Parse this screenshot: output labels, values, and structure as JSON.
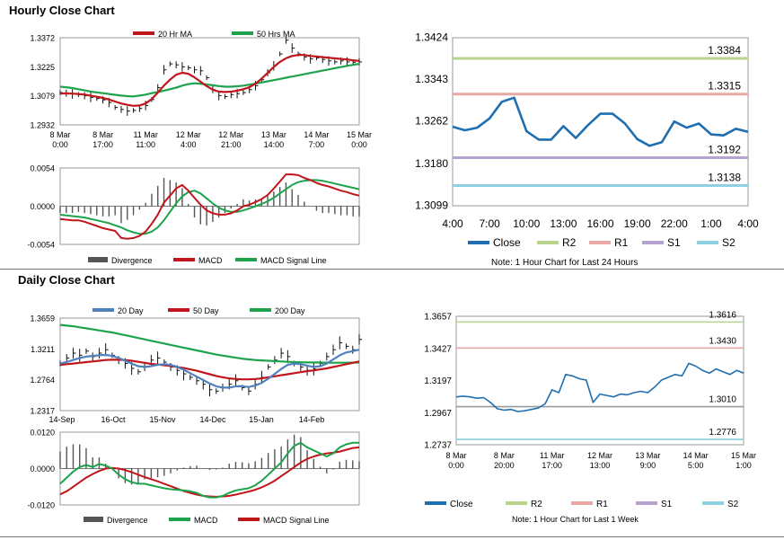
{
  "hourly": {
    "title": "Hourly Close Chart",
    "note": "Note: 1 Hour Chart for Last 24 Hours"
  },
  "daily": {
    "title": "Daily Close Chart",
    "note": "Note: 1 Hour Chart for Last 1 Week"
  },
  "chart_data": [
    {
      "id": "hourly-price",
      "type": "line",
      "legend": [
        "20 Hr MA",
        "50 Hrs MA"
      ],
      "yticks": [
        "1.3372",
        "1.3225",
        "1.3079",
        "1.2932"
      ],
      "ylim": [
        1.2932,
        1.3372
      ],
      "xticks": [
        [
          "8 Mar",
          "0:00"
        ],
        [
          "8 Mar",
          "17:00"
        ],
        [
          "11 Mar",
          "11:00"
        ],
        [
          "12 Mar",
          "4:00"
        ],
        [
          "12 Mar",
          "21:00"
        ],
        [
          "13 Mar",
          "14:00"
        ],
        [
          "14 Mar",
          "7:00"
        ],
        [
          "15 Mar",
          "0:00"
        ]
      ],
      "series": [
        {
          "name": "Close",
          "values": [
            1.3095,
            1.3092,
            1.3088,
            1.3085,
            1.3079,
            1.3071,
            1.3065,
            1.3058,
            1.3045,
            1.302,
            1.301,
            1.3002,
            1.3005,
            1.3015,
            1.303,
            1.306,
            1.312,
            1.321,
            1.324,
            1.3235,
            1.3225,
            1.322,
            1.321,
            1.3205,
            1.317,
            1.311,
            1.308,
            1.3075,
            1.3085,
            1.309,
            1.3095,
            1.311,
            1.313,
            1.316,
            1.3195,
            1.323,
            1.329,
            1.336,
            1.332,
            1.329,
            1.3275,
            1.3265,
            1.327,
            1.3262,
            1.3255,
            1.325,
            1.3255,
            1.325,
            1.3248,
            1.325
          ]
        },
        {
          "name": "20 Hr MA",
          "values": [
            1.309,
            1.3091,
            1.309,
            1.3088,
            1.3085,
            1.308,
            1.3074,
            1.3068,
            1.306,
            1.305,
            1.304,
            1.3033,
            1.3028,
            1.303,
            1.304,
            1.3062,
            1.3095,
            1.313,
            1.316,
            1.3185,
            1.3195,
            1.319,
            1.3172,
            1.315,
            1.3128,
            1.311,
            1.31,
            1.3098,
            1.31,
            1.3105,
            1.3112,
            1.3122,
            1.314,
            1.3165,
            1.3195,
            1.3225,
            1.325,
            1.3268,
            1.328,
            1.3285,
            1.3285,
            1.328,
            1.3277,
            1.3274,
            1.3271,
            1.3268,
            1.3265,
            1.3262,
            1.3258,
            1.3255
          ]
        },
        {
          "name": "50 Hrs MA",
          "values": [
            1.3125,
            1.3122,
            1.3118,
            1.3112,
            1.3106,
            1.31,
            1.3096,
            1.3092,
            1.3088,
            1.3084,
            1.308,
            1.3077,
            1.3076,
            1.308,
            1.3085,
            1.3092,
            1.3098,
            1.3105,
            1.3112,
            1.312,
            1.313,
            1.3138,
            1.3142,
            1.314,
            1.3136,
            1.3132,
            1.3128,
            1.3125,
            1.3125,
            1.3127,
            1.313,
            1.3135,
            1.314,
            1.3146,
            1.3152,
            1.3158,
            1.3164,
            1.317,
            1.3176,
            1.3182,
            1.3188,
            1.3194,
            1.32,
            1.3206,
            1.3212,
            1.3218,
            1.3224,
            1.323,
            1.3235,
            1.324
          ]
        }
      ]
    },
    {
      "id": "hourly-macd",
      "type": "line",
      "legend": [
        "Divergence",
        "MACD",
        "MACD Signal Line"
      ],
      "yticks": [
        "0.0054",
        "0.0000",
        "-0.0054"
      ],
      "ylim": [
        -0.0054,
        0.0054
      ],
      "series": [
        {
          "name": "MACD",
          "values": [
            -0.0018,
            -0.0019,
            -0.002,
            -0.002,
            -0.0022,
            -0.0025,
            -0.0028,
            -0.0031,
            -0.0033,
            -0.0035,
            -0.0045,
            -0.0046,
            -0.0045,
            -0.0042,
            -0.0036,
            -0.0025,
            -0.0012,
            0.0005,
            0.0015,
            0.0025,
            0.003,
            0.0022,
            0.0012,
            0.0002,
            -0.0006,
            -0.001,
            -0.0012,
            -0.0012,
            -0.001,
            -0.0006,
            0.0,
            0.0002,
            0.0006,
            0.001,
            0.0016,
            0.0025,
            0.0035,
            0.0045,
            0.0045,
            0.0044,
            0.004,
            0.0037,
            0.0033,
            0.003,
            0.0028,
            0.0025,
            0.0022,
            0.002,
            0.0017,
            0.0015
          ]
        },
        {
          "name": "MACD Signal Line",
          "values": [
            -0.0012,
            -0.0013,
            -0.0014,
            -0.0015,
            -0.0016,
            -0.0018,
            -0.002,
            -0.0022,
            -0.0024,
            -0.0027,
            -0.003,
            -0.0034,
            -0.0037,
            -0.0039,
            -0.0039,
            -0.0036,
            -0.003,
            -0.002,
            -0.0008,
            0.0004,
            0.0014,
            0.002,
            0.0022,
            0.0018,
            0.0011,
            0.0004,
            -0.0002,
            -0.0006,
            -0.0008,
            -0.0008,
            -0.0006,
            -0.0003,
            0.0,
            0.0003,
            0.0007,
            0.0012,
            0.0018,
            0.0024,
            0.003,
            0.0034,
            0.0036,
            0.0037,
            0.0037,
            0.0036,
            0.0034,
            0.0032,
            0.003,
            0.0028,
            0.0026,
            0.0024
          ]
        }
      ]
    },
    {
      "id": "hourly-pivot",
      "type": "line",
      "yticks": [
        "1.3424",
        "1.3343",
        "1.3262",
        "1.3180",
        "1.3099"
      ],
      "ylim": [
        1.3099,
        1.3424
      ],
      "xticks": [
        "4:00",
        "7:00",
        "10:00",
        "13:00",
        "16:00",
        "19:00",
        "22:00",
        "1:00",
        "4:00"
      ],
      "levels": [
        {
          "name": "R2",
          "value": 1.3384,
          "label": "1.3384",
          "color": "#b8d38c"
        },
        {
          "name": "R1",
          "value": 1.3315,
          "label": "1.3315",
          "color": "#e9a8a4"
        },
        {
          "name": "S1",
          "value": 1.3192,
          "label": "1.3192",
          "color": "#b7a3cf"
        },
        {
          "name": "S2",
          "value": 1.3138,
          "label": "1.3138",
          "color": "#8ed0e0"
        }
      ],
      "legend": [
        "Close",
        "R2",
        "R1",
        "S1",
        "S2"
      ],
      "series": [
        {
          "name": "Close",
          "values": [
            1.3252,
            1.3245,
            1.325,
            1.3268,
            1.33,
            1.3308,
            1.3243,
            1.3227,
            1.3227,
            1.3253,
            1.323,
            1.3255,
            1.3277,
            1.3277,
            1.3258,
            1.3228,
            1.3215,
            1.3222,
            1.3262,
            1.325,
            1.3258,
            1.3237,
            1.3235,
            1.3248,
            1.3242
          ]
        }
      ]
    },
    {
      "id": "daily-price",
      "type": "line",
      "legend": [
        "20 Day",
        "50 Day",
        "200 Day"
      ],
      "yticks": [
        "1.3659",
        "1.3211",
        "1.2764",
        "1.2317"
      ],
      "ylim": [
        1.2317,
        1.3659
      ],
      "xticks": [
        "14-Sep",
        "16-Oct",
        "15-Nov",
        "14-Dec",
        "15-Jan",
        "14-Feb"
      ],
      "series": [
        {
          "name": "Close",
          "values": [
            1.3,
            1.308,
            1.315,
            1.312,
            1.318,
            1.31,
            1.315,
            1.32,
            1.312,
            1.305,
            1.3,
            1.293,
            1.288,
            1.295,
            1.305,
            1.308,
            1.302,
            1.295,
            1.29,
            1.285,
            1.28,
            1.275,
            1.27,
            1.262,
            1.26,
            1.265,
            1.27,
            1.275,
            1.265,
            1.26,
            1.27,
            1.28,
            1.295,
            1.305,
            1.315,
            1.31,
            1.3,
            1.295,
            1.29,
            1.292,
            1.3,
            1.31,
            1.32,
            1.33,
            1.325,
            1.32,
            1.335
          ]
        },
        {
          "name": "20 Day",
          "values": [
            1.3,
            1.302,
            1.305,
            1.308,
            1.31,
            1.311,
            1.312,
            1.3125,
            1.311,
            1.308,
            1.304,
            1.3,
            1.296,
            1.295,
            1.296,
            1.298,
            1.299,
            1.298,
            1.295,
            1.291,
            1.286,
            1.281,
            1.276,
            1.271,
            1.267,
            1.265,
            1.265,
            1.267,
            1.267,
            1.266,
            1.268,
            1.272,
            1.278,
            1.285,
            1.292,
            1.298,
            1.3,
            1.299,
            1.297,
            1.295,
            1.296,
            1.3,
            1.306,
            1.312,
            1.316,
            1.318,
            1.32
          ]
        },
        {
          "name": "50 Day",
          "values": [
            1.298,
            1.299,
            1.3,
            1.301,
            1.302,
            1.303,
            1.304,
            1.305,
            1.3055,
            1.3055,
            1.305,
            1.304,
            1.3025,
            1.301,
            1.2995,
            1.2985,
            1.2975,
            1.2965,
            1.295,
            1.2935,
            1.2915,
            1.2895,
            1.287,
            1.2845,
            1.282,
            1.28,
            1.2785,
            1.2775,
            1.277,
            1.277,
            1.2775,
            1.2785,
            1.28,
            1.2815,
            1.283,
            1.2845,
            1.286,
            1.2875,
            1.289,
            1.29,
            1.2915,
            1.293,
            1.295,
            1.297,
            1.299,
            1.301,
            1.303
          ]
        },
        {
          "name": "200 Day",
          "values": [
            1.356,
            1.355,
            1.354,
            1.3525,
            1.351,
            1.3495,
            1.348,
            1.3465,
            1.345,
            1.343,
            1.341,
            1.339,
            1.337,
            1.335,
            1.333,
            1.331,
            1.329,
            1.327,
            1.325,
            1.323,
            1.321,
            1.319,
            1.317,
            1.315,
            1.313,
            1.3115,
            1.31,
            1.3085,
            1.307,
            1.306,
            1.305,
            1.3045,
            1.304,
            1.3035,
            1.303,
            1.3025,
            1.302,
            1.3018,
            1.3016,
            1.3015,
            1.3014,
            1.3013,
            1.3012,
            1.3012,
            1.3012,
            1.3013,
            1.3015
          ]
        }
      ]
    },
    {
      "id": "daily-macd",
      "type": "line",
      "legend": [
        "Divergence",
        "MACD",
        "MACD Signal Line"
      ],
      "yticks": [
        "0.0120",
        "0.0000",
        "-0.0120"
      ],
      "ylim": [
        -0.012,
        0.012
      ],
      "series": [
        {
          "name": "MACD",
          "values": [
            -0.005,
            -0.003,
            -0.001,
            0.0005,
            0.0012,
            0.0005,
            0.0015,
            0.001,
            0.0,
            -0.002,
            -0.0035,
            -0.0045,
            -0.005,
            -0.005,
            -0.0055,
            -0.006,
            -0.0065,
            -0.0068,
            -0.007,
            -0.0072,
            -0.0075,
            -0.008,
            -0.009,
            -0.0095,
            -0.0095,
            -0.009,
            -0.008,
            -0.0072,
            -0.0068,
            -0.0065,
            -0.0055,
            -0.004,
            -0.002,
            0.0,
            0.002,
            0.005,
            0.0075,
            0.0085,
            0.007,
            0.006,
            0.005,
            0.004,
            0.005,
            0.007,
            0.008,
            0.0085,
            0.0085
          ]
        },
        {
          "name": "MACD Signal Line",
          "values": [
            -0.0085,
            -0.0075,
            -0.006,
            -0.0045,
            -0.003,
            -0.0018,
            -0.0008,
            0.0,
            0.0002,
            0.0,
            -0.0005,
            -0.0012,
            -0.002,
            -0.0028,
            -0.0035,
            -0.0042,
            -0.005,
            -0.0058,
            -0.0066,
            -0.0074,
            -0.008,
            -0.0086,
            -0.009,
            -0.0092,
            -0.0093,
            -0.0092,
            -0.009,
            -0.0086,
            -0.0081,
            -0.0076,
            -0.007,
            -0.0062,
            -0.0052,
            -0.004,
            -0.0025,
            -0.001,
            0.0005,
            0.002,
            0.0032,
            0.004,
            0.0046,
            0.005,
            0.0052,
            0.0056,
            0.0062,
            0.0068,
            0.007
          ]
        }
      ]
    },
    {
      "id": "daily-pivot",
      "type": "line",
      "yticks": [
        "1.3657",
        "1.3427",
        "1.3197",
        "1.2967",
        "1.2737"
      ],
      "ylim": [
        1.2737,
        1.3657
      ],
      "xticks": [
        [
          "8 Mar",
          "0:00"
        ],
        [
          "8 Mar",
          "20:00"
        ],
        [
          "11 Mar",
          "17:00"
        ],
        [
          "12 Mar",
          "13:00"
        ],
        [
          "13 Mar",
          "9:00"
        ],
        [
          "14 Mar",
          "5:00"
        ],
        [
          "15 Mar",
          "1:00"
        ]
      ],
      "levels": [
        {
          "name": "R2",
          "value": 1.3616,
          "label": "1.3616",
          "color": "#b8d38c"
        },
        {
          "name": "R1",
          "value": 1.343,
          "label": "1.3430",
          "color": "#e9a8a4"
        },
        {
          "name": "S1",
          "value": 1.301,
          "label": "1.3010",
          "color": "#9a9a9a"
        },
        {
          "name": "S2",
          "value": 1.2776,
          "label": "1.2776",
          "color": "#8ed0e0"
        }
      ],
      "legend": [
        "Close",
        "R2",
        "R1",
        "S1",
        "S2"
      ],
      "series": [
        {
          "name": "Close",
          "values": [
            1.308,
            1.3085,
            1.308,
            1.307,
            1.3075,
            1.304,
            1.2995,
            1.2985,
            1.299,
            1.2975,
            1.298,
            1.299,
            1.3,
            1.303,
            1.313,
            1.311,
            1.324,
            1.323,
            1.321,
            1.32,
            1.304,
            1.31,
            1.309,
            1.308,
            1.31,
            1.3095,
            1.311,
            1.312,
            1.311,
            1.315,
            1.32,
            1.322,
            1.324,
            1.323,
            1.332,
            1.33,
            1.327,
            1.325,
            1.328,
            1.326,
            1.324,
            1.327,
            1.325
          ]
        }
      ]
    }
  ]
}
